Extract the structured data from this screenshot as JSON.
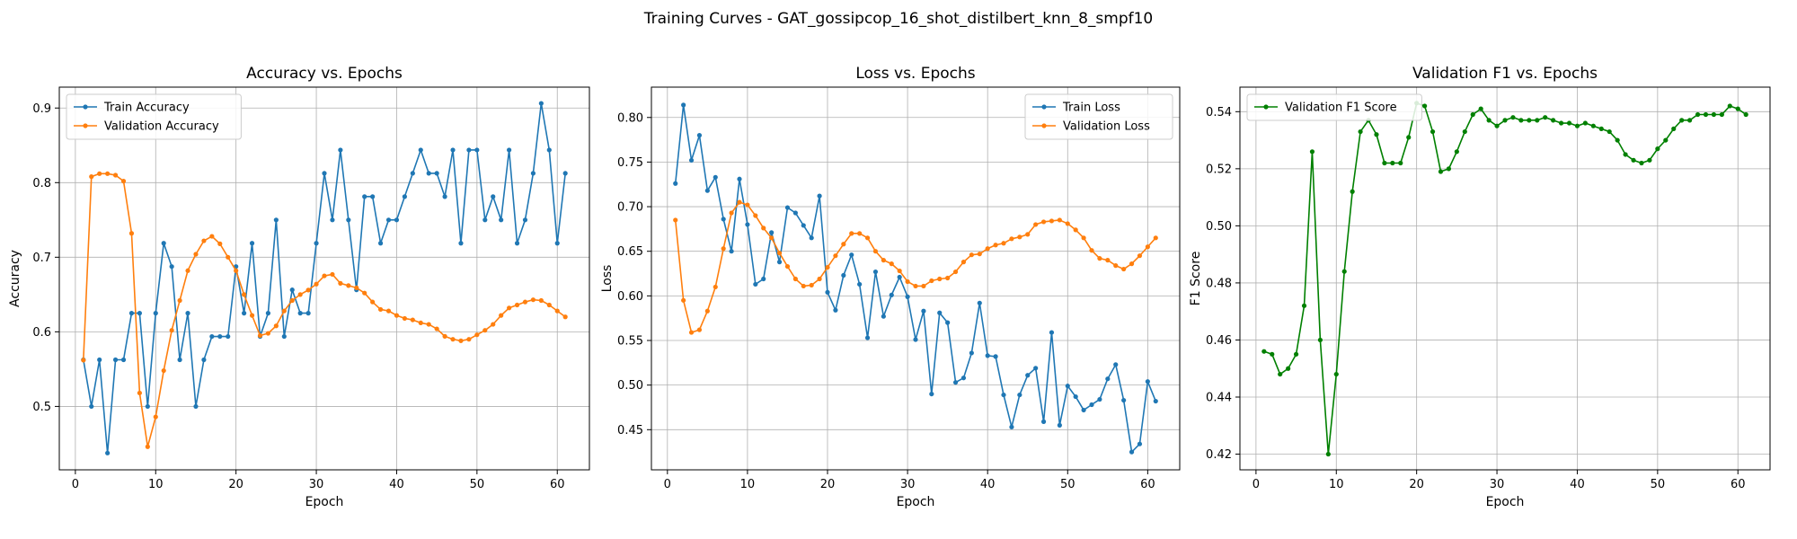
{
  "figure": {
    "suptitle": "Training Curves - GAT_gossipcop_16_shot_distilbert_knn_8_smpf10"
  },
  "chart_data": [
    {
      "type": "line",
      "title": "Accuracy vs. Epochs",
      "xlabel": "Epoch",
      "ylabel": "Accuracy",
      "xlim": [
        -2,
        64
      ],
      "ylim": [
        0.415,
        0.928
      ],
      "xticks": [
        0,
        10,
        20,
        30,
        40,
        50,
        60
      ],
      "yticks": [
        0.5,
        0.6,
        0.7,
        0.8,
        0.9
      ],
      "ytick_labels": [
        "0.5",
        "0.6",
        "0.7",
        "0.8",
        "0.9"
      ],
      "grid": true,
      "legend": "upper-left",
      "x": [
        1,
        2,
        3,
        4,
        5,
        6,
        7,
        8,
        9,
        10,
        11,
        12,
        13,
        14,
        15,
        16,
        17,
        18,
        19,
        20,
        21,
        22,
        23,
        24,
        25,
        26,
        27,
        28,
        29,
        30,
        31,
        32,
        33,
        34,
        35,
        36,
        37,
        38,
        39,
        40,
        41,
        42,
        43,
        44,
        45,
        46,
        47,
        48,
        49,
        50,
        51,
        52,
        53,
        54,
        55,
        56,
        57,
        58,
        59,
        60,
        61
      ],
      "series": [
        {
          "name": "Train Accuracy",
          "color": "#1f77b4",
          "values": [
            0.5625,
            0.5,
            0.5625,
            0.4375,
            0.5625,
            0.5625,
            0.625,
            0.625,
            0.5,
            0.625,
            0.71875,
            0.6875,
            0.5625,
            0.625,
            0.5,
            0.5625,
            0.59375,
            0.59375,
            0.59375,
            0.6875,
            0.625,
            0.71875,
            0.59375,
            0.625,
            0.75,
            0.59375,
            0.65625,
            0.625,
            0.625,
            0.71875,
            0.8125,
            0.75,
            0.84375,
            0.75,
            0.65625,
            0.78125,
            0.78125,
            0.71875,
            0.75,
            0.75,
            0.78125,
            0.8125,
            0.84375,
            0.8125,
            0.8125,
            0.78125,
            0.84375,
            0.71875,
            0.84375,
            0.84375,
            0.75,
            0.78125,
            0.75,
            0.84375,
            0.71875,
            0.75,
            0.8125,
            0.90625,
            0.84375,
            0.71875,
            0.8125
          ]
        },
        {
          "name": "Validation Accuracy",
          "color": "#ff7f0e",
          "values": [
            0.562,
            0.808,
            0.812,
            0.812,
            0.81,
            0.802,
            0.732,
            0.518,
            0.446,
            0.486,
            0.548,
            0.602,
            0.642,
            0.682,
            0.704,
            0.722,
            0.728,
            0.718,
            0.7,
            0.682,
            0.65,
            0.622,
            0.595,
            0.598,
            0.608,
            0.628,
            0.642,
            0.65,
            0.656,
            0.664,
            0.675,
            0.677,
            0.665,
            0.662,
            0.659,
            0.652,
            0.64,
            0.63,
            0.628,
            0.622,
            0.618,
            0.616,
            0.612,
            0.61,
            0.604,
            0.594,
            0.59,
            0.588,
            0.59,
            0.596,
            0.602,
            0.61,
            0.622,
            0.632,
            0.636,
            0.64,
            0.643,
            0.642,
            0.636,
            0.628,
            0.62
          ]
        }
      ]
    },
    {
      "type": "line",
      "title": "Loss vs. Epochs",
      "xlabel": "Epoch",
      "ylabel": "Loss",
      "xlim": [
        -2,
        64
      ],
      "ylim": [
        0.405,
        0.834
      ],
      "xticks": [
        0,
        10,
        20,
        30,
        40,
        50,
        60
      ],
      "yticks": [
        0.45,
        0.5,
        0.55,
        0.6,
        0.65,
        0.7,
        0.75,
        0.8
      ],
      "ytick_labels": [
        "0.45",
        "0.50",
        "0.55",
        "0.60",
        "0.65",
        "0.70",
        "0.75",
        "0.80"
      ],
      "grid": true,
      "legend": "upper-right",
      "x": [
        1,
        2,
        3,
        4,
        5,
        6,
        7,
        8,
        9,
        10,
        11,
        12,
        13,
        14,
        15,
        16,
        17,
        18,
        19,
        20,
        21,
        22,
        23,
        24,
        25,
        26,
        27,
        28,
        29,
        30,
        31,
        32,
        33,
        34,
        35,
        36,
        37,
        38,
        39,
        40,
        41,
        42,
        43,
        44,
        45,
        46,
        47,
        48,
        49,
        50,
        51,
        52,
        53,
        54,
        55,
        56,
        57,
        58,
        59,
        60,
        61
      ],
      "series": [
        {
          "name": "Train Loss",
          "color": "#1f77b4",
          "values": [
            0.726,
            0.814,
            0.752,
            0.78,
            0.718,
            0.733,
            0.686,
            0.65,
            0.731,
            0.68,
            0.613,
            0.619,
            0.671,
            0.638,
            0.699,
            0.693,
            0.679,
            0.665,
            0.712,
            0.604,
            0.584,
            0.623,
            0.646,
            0.613,
            0.553,
            0.627,
            0.577,
            0.601,
            0.621,
            0.599,
            0.551,
            0.583,
            0.49,
            0.581,
            0.57,
            0.503,
            0.508,
            0.536,
            0.592,
            0.533,
            0.532,
            0.489,
            0.453,
            0.489,
            0.511,
            0.519,
            0.459,
            0.559,
            0.455,
            0.499,
            0.487,
            0.472,
            0.478,
            0.484,
            0.507,
            0.523,
            0.483,
            0.425,
            0.434,
            0.504,
            0.482
          ]
        },
        {
          "name": "Validation Loss",
          "color": "#ff7f0e",
          "values": [
            0.685,
            0.595,
            0.559,
            0.562,
            0.583,
            0.61,
            0.653,
            0.693,
            0.705,
            0.702,
            0.69,
            0.676,
            0.665,
            0.648,
            0.633,
            0.619,
            0.611,
            0.612,
            0.619,
            0.632,
            0.645,
            0.658,
            0.67,
            0.67,
            0.665,
            0.65,
            0.64,
            0.636,
            0.628,
            0.616,
            0.611,
            0.611,
            0.617,
            0.619,
            0.62,
            0.627,
            0.638,
            0.646,
            0.647,
            0.653,
            0.657,
            0.659,
            0.664,
            0.666,
            0.669,
            0.68,
            0.683,
            0.684,
            0.685,
            0.681,
            0.674,
            0.665,
            0.651,
            0.642,
            0.64,
            0.634,
            0.63,
            0.636,
            0.645,
            0.655,
            0.665
          ]
        }
      ]
    },
    {
      "type": "line",
      "title": "Validation F1 vs. Epochs",
      "xlabel": "Epoch",
      "ylabel": "F1 Score",
      "xlim": [
        -2,
        64
      ],
      "ylim": [
        0.4145,
        0.5486
      ],
      "xticks": [
        0,
        10,
        20,
        30,
        40,
        50,
        60
      ],
      "yticks": [
        0.42,
        0.44,
        0.46,
        0.48,
        0.5,
        0.52,
        0.54
      ],
      "ytick_labels": [
        "0.42",
        "0.44",
        "0.46",
        "0.48",
        "0.50",
        "0.52",
        "0.54"
      ],
      "grid": true,
      "legend": "upper-left",
      "x": [
        1,
        2,
        3,
        4,
        5,
        6,
        7,
        8,
        9,
        10,
        11,
        12,
        13,
        14,
        15,
        16,
        17,
        18,
        19,
        20,
        21,
        22,
        23,
        24,
        25,
        26,
        27,
        28,
        29,
        30,
        31,
        32,
        33,
        34,
        35,
        36,
        37,
        38,
        39,
        40,
        41,
        42,
        43,
        44,
        45,
        46,
        47,
        48,
        49,
        50,
        51,
        52,
        53,
        54,
        55,
        56,
        57,
        58,
        59,
        60,
        61
      ],
      "series": [
        {
          "name": "Validation F1 Score",
          "color": "#008000",
          "values": [
            0.456,
            0.455,
            0.448,
            0.45,
            0.455,
            0.472,
            0.526,
            0.46,
            0.42,
            0.448,
            0.484,
            0.512,
            0.533,
            0.537,
            0.532,
            0.522,
            0.522,
            0.522,
            0.531,
            0.543,
            0.542,
            0.533,
            0.519,
            0.52,
            0.526,
            0.533,
            0.539,
            0.541,
            0.537,
            0.535,
            0.537,
            0.538,
            0.537,
            0.537,
            0.537,
            0.538,
            0.537,
            0.536,
            0.536,
            0.535,
            0.536,
            0.535,
            0.534,
            0.533,
            0.53,
            0.525,
            0.523,
            0.522,
            0.523,
            0.527,
            0.53,
            0.534,
            0.537,
            0.537,
            0.539,
            0.539,
            0.539,
            0.539,
            0.542,
            0.541,
            0.539
          ]
        }
      ]
    }
  ]
}
